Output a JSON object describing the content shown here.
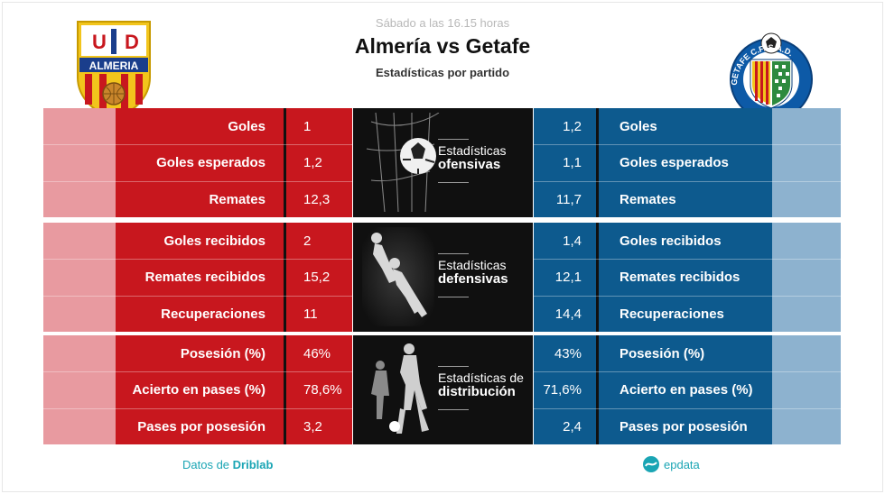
{
  "header": {
    "kickoff": "Sábado a las 16.15 horas",
    "title": "Almería vs Getafe",
    "subtitle": "Estadísticas por partido"
  },
  "teams": {
    "home": {
      "name": "Almería",
      "crest_text_top": "U D",
      "crest_text": "ALMERIA",
      "color": "#c8171e",
      "light_color": "#e89aa0"
    },
    "away": {
      "name": "Getafe",
      "crest_text": "GETAFE C.F. S.A.D.",
      "color": "#0d5a8e",
      "light_color": "#8db2cf"
    }
  },
  "categories": [
    {
      "line1": "Estadísticas",
      "line2": "ofensivas",
      "icon": "football-net-icon",
      "rows": [
        {
          "label": "Goles",
          "home": "1",
          "away": "1,2"
        },
        {
          "label": "Goles esperados",
          "home": "1,2",
          "away": "1,1"
        },
        {
          "label": "Remates",
          "home": "12,3",
          "away": "11,7"
        }
      ]
    },
    {
      "line1": "Estadísticas",
      "line2": "defensivas",
      "icon": "goalkeeper-icon",
      "rows": [
        {
          "label": "Goles recibidos",
          "home": "2",
          "away": "1,4"
        },
        {
          "label": "Remates recibidos",
          "home": "15,2",
          "away": "12,1"
        },
        {
          "label": "Recuperaciones",
          "home": "11",
          "away": "14,4"
        }
      ]
    },
    {
      "line1": "Estadísticas de",
      "line2": "distribución",
      "icon": "players-icon",
      "rows": [
        {
          "label": "Posesión (%)",
          "home": "46%",
          "away": "43%"
        },
        {
          "label": "Acierto en pases (%)",
          "home": "78,6%",
          "away": "71,6%"
        },
        {
          "label": "Pases por posesión",
          "home": "3,2",
          "away": "2,4"
        }
      ]
    }
  ],
  "footer": {
    "source_prefix": "Datos de",
    "source_name": "Driblab",
    "brand": "epdata"
  }
}
